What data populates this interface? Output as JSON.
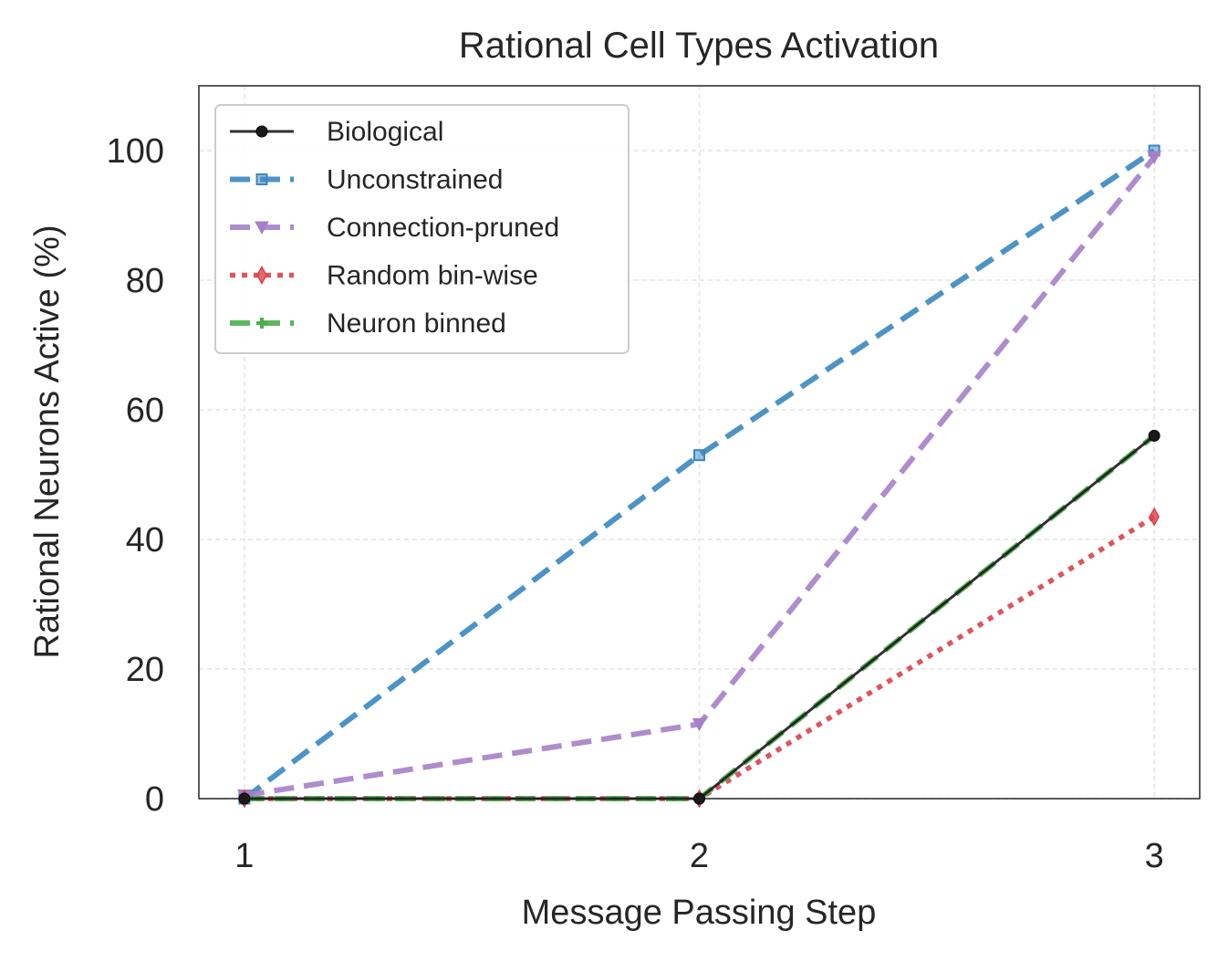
{
  "chart_data": {
    "type": "line",
    "title": "Rational Cell Types Activation",
    "xlabel": "Message Passing Step",
    "ylabel": "Rational Neurons Active (%)",
    "x": [
      1,
      2,
      3
    ],
    "xlim": [
      0.9,
      3.1
    ],
    "ylim": [
      0,
      110
    ],
    "xticks": [
      "1",
      "2",
      "3"
    ],
    "yticks": [
      0,
      20,
      40,
      60,
      80,
      100
    ],
    "grid": true,
    "legend_position": "top-left",
    "series": [
      {
        "name": "Biological",
        "values": [
          0,
          0,
          56
        ],
        "color": "#1a1a1a",
        "marker": "circle",
        "line_style": "solid"
      },
      {
        "name": "Unconstrained",
        "values": [
          0,
          53,
          100
        ],
        "color": "#3a87bf",
        "marker": "square",
        "line_style": "dashed"
      },
      {
        "name": "Connection-pruned",
        "values": [
          0.5,
          11.5,
          99
        ],
        "color": "#a580c8",
        "marker": "triangle-down",
        "line_style": "dashed"
      },
      {
        "name": "Random bin-wise",
        "values": [
          0,
          0,
          43.5
        ],
        "color": "#d9434a",
        "marker": "diamond",
        "line_style": "dotted"
      },
      {
        "name": "Neuron binned",
        "values": [
          0,
          0,
          56
        ],
        "color": "#4cae4c",
        "marker": "plus",
        "line_style": "dashed"
      }
    ]
  }
}
